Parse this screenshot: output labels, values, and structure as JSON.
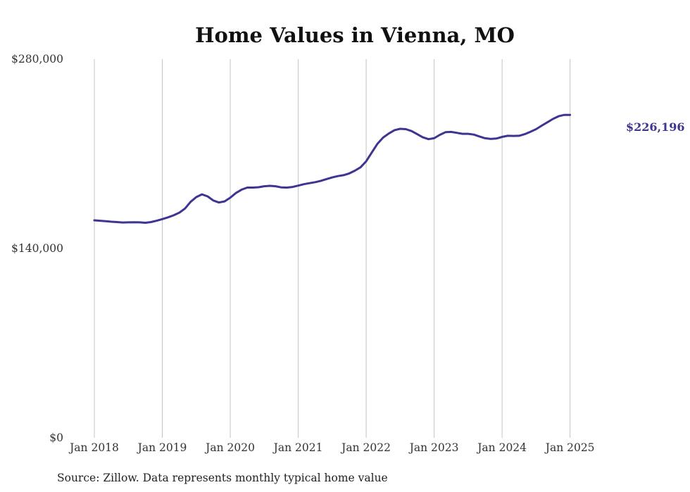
{
  "chart_data": {
    "type": "line",
    "title": "Home Values in Vienna, MO",
    "xlabel": "",
    "ylabel": "",
    "ylim": [
      0,
      280000
    ],
    "y_ticks": [
      0,
      140000,
      280000
    ],
    "y_tick_labels": [
      "$0",
      "$140,000",
      "$280,000"
    ],
    "x_range": [
      2018.0,
      2025.6667
    ],
    "x_ticks": [
      2018,
      2019,
      2020,
      2021,
      2022,
      2023,
      2024,
      2025
    ],
    "x_tick_labels": [
      "Jan 2018",
      "Jan 2019",
      "Jan 2020",
      "Jan 2021",
      "Jan 2022",
      "Jan 2023",
      "Jan 2024",
      "Jan 2025"
    ],
    "grid": "vertical",
    "line_color": "#3d3591",
    "series": [
      {
        "points": [
          [
            2018.0,
            160800
          ],
          [
            2018.083,
            160500
          ],
          [
            2018.167,
            160200
          ],
          [
            2018.25,
            159800
          ],
          [
            2018.333,
            159500
          ],
          [
            2018.417,
            159200
          ],
          [
            2018.5,
            159300
          ],
          [
            2018.583,
            159400
          ],
          [
            2018.667,
            159300
          ],
          [
            2018.75,
            159000
          ],
          [
            2018.833,
            159500
          ],
          [
            2018.917,
            160500
          ],
          [
            2019.0,
            161700
          ],
          [
            2019.083,
            163000
          ],
          [
            2019.167,
            164500
          ],
          [
            2019.25,
            166500
          ],
          [
            2019.333,
            169500
          ],
          [
            2019.417,
            174500
          ],
          [
            2019.5,
            178000
          ],
          [
            2019.583,
            180000
          ],
          [
            2019.667,
            178500
          ],
          [
            2019.75,
            175500
          ],
          [
            2019.833,
            174000
          ],
          [
            2019.917,
            174800
          ],
          [
            2020.0,
            177500
          ],
          [
            2020.083,
            181000
          ],
          [
            2020.167,
            183500
          ],
          [
            2020.25,
            185000
          ],
          [
            2020.333,
            185000
          ],
          [
            2020.417,
            185300
          ],
          [
            2020.5,
            186000
          ],
          [
            2020.583,
            186300
          ],
          [
            2020.667,
            186000
          ],
          [
            2020.75,
            185200
          ],
          [
            2020.833,
            185000
          ],
          [
            2020.917,
            185500
          ],
          [
            2021.0,
            186500
          ],
          [
            2021.083,
            187500
          ],
          [
            2021.167,
            188300
          ],
          [
            2021.25,
            189000
          ],
          [
            2021.333,
            190000
          ],
          [
            2021.417,
            191300
          ],
          [
            2021.5,
            192500
          ],
          [
            2021.583,
            193500
          ],
          [
            2021.667,
            194200
          ],
          [
            2021.75,
            195500
          ],
          [
            2021.833,
            197500
          ],
          [
            2021.917,
            200000
          ],
          [
            2022.0,
            204500
          ],
          [
            2022.083,
            211000
          ],
          [
            2022.167,
            217500
          ],
          [
            2022.25,
            222000
          ],
          [
            2022.333,
            225000
          ],
          [
            2022.417,
            227500
          ],
          [
            2022.5,
            228500
          ],
          [
            2022.583,
            228200
          ],
          [
            2022.667,
            226800
          ],
          [
            2022.75,
            224500
          ],
          [
            2022.833,
            222200
          ],
          [
            2022.917,
            220800
          ],
          [
            2023.0,
            221500
          ],
          [
            2023.083,
            224000
          ],
          [
            2023.167,
            226000
          ],
          [
            2023.25,
            226200
          ],
          [
            2023.333,
            225500
          ],
          [
            2023.417,
            224800
          ],
          [
            2023.5,
            224800
          ],
          [
            2023.583,
            224200
          ],
          [
            2023.667,
            222800
          ],
          [
            2023.75,
            221500
          ],
          [
            2023.833,
            221000
          ],
          [
            2023.917,
            221300
          ],
          [
            2024.0,
            222500
          ],
          [
            2024.083,
            223300
          ],
          [
            2024.167,
            223200
          ],
          [
            2024.25,
            223300
          ],
          [
            2024.333,
            224500
          ],
          [
            2024.417,
            226300
          ],
          [
            2024.5,
            228200
          ],
          [
            2024.583,
            230800
          ],
          [
            2024.667,
            233300
          ],
          [
            2024.75,
            235800
          ],
          [
            2024.833,
            237800
          ],
          [
            2024.917,
            238800
          ],
          [
            2025.0,
            238800
          ]
        ]
      }
    ],
    "end_label": "$226,196",
    "source": "Source: Zillow. Data represents monthly typical home value"
  }
}
